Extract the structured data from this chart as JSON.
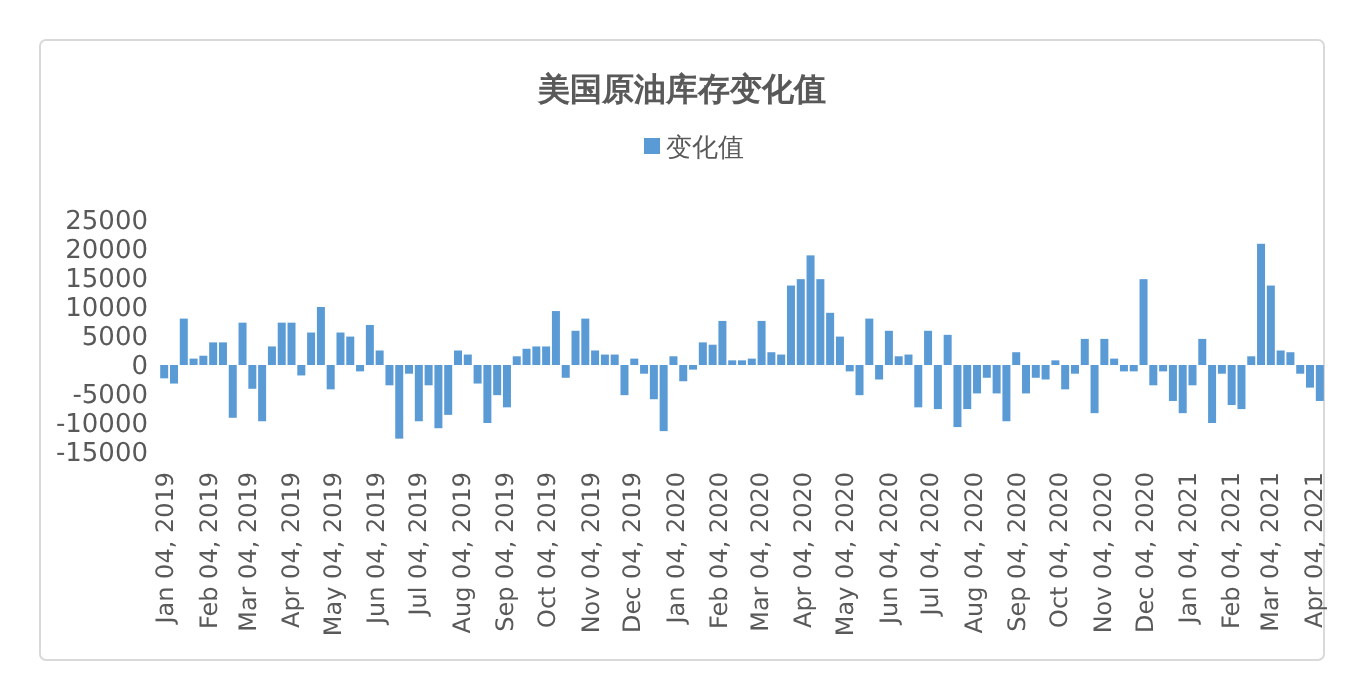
{
  "chart_data": {
    "type": "bar",
    "title": "美国原油库存变化值",
    "legend": "top",
    "grid": false,
    "series": [
      {
        "name": "变化值",
        "color": "#5b9bd5",
        "values": [
          -2300,
          -3200,
          8000,
          1100,
          1600,
          3900,
          3900,
          -9100,
          7300,
          -4100,
          -9700,
          3200,
          7300,
          7300,
          -1800,
          5600,
          10000,
          -4200,
          5600,
          4900,
          -1100,
          6900,
          2500,
          -3500,
          -12700,
          -1500,
          -9700,
          -3500,
          -10900,
          -8600,
          2500,
          1800,
          -3200,
          -10000,
          -5200,
          -7300,
          1500,
          2800,
          3200,
          3200,
          9300,
          -2200,
          5900,
          8000,
          2500,
          1800,
          1800,
          -5200,
          1100,
          -1500,
          -5900,
          -11400,
          1500,
          -2800,
          -800,
          3900,
          3500,
          7600,
          800,
          800,
          1100,
          7600,
          2200,
          1800,
          13700,
          14800,
          18900,
          14800,
          9000,
          4900,
          -1100,
          -5200,
          8000,
          -2500,
          5900,
          1500,
          1800,
          -7300,
          5900,
          -7600,
          5200,
          -10700,
          -7600,
          -4900,
          -2200,
          -4900,
          -9700,
          2200,
          -4900,
          -2200,
          -2500,
          800,
          -4200,
          -1500,
          4500,
          -8300,
          4500,
          1100,
          -1100,
          -1100,
          14800,
          -3500,
          -1100,
          -6200,
          -8300,
          -3500,
          4500,
          -10000,
          -1500,
          -6900,
          -7600,
          1500,
          20900,
          13700,
          2500,
          2200,
          -1500,
          -3900,
          -6200
        ]
      }
    ],
    "x": [
      "2019-01-04",
      "2019-01-11",
      "2019-01-18",
      "2019-01-25",
      "2019-02-01",
      "2019-02-08",
      "2019-02-15",
      "2019-02-22",
      "2019-03-01",
      "2019-03-08",
      "2019-03-15",
      "2019-03-22",
      "2019-03-29",
      "2019-04-05",
      "2019-04-12",
      "2019-04-19",
      "2019-04-26",
      "2019-05-03",
      "2019-05-10",
      "2019-05-17",
      "2019-05-24",
      "2019-05-31",
      "2019-06-07",
      "2019-06-14",
      "2019-06-21",
      "2019-06-28",
      "2019-07-05",
      "2019-07-12",
      "2019-07-19",
      "2019-07-26",
      "2019-08-02",
      "2019-08-09",
      "2019-08-16",
      "2019-08-23",
      "2019-08-30",
      "2019-09-06",
      "2019-09-13",
      "2019-09-20",
      "2019-09-27",
      "2019-10-04",
      "2019-10-11",
      "2019-10-18",
      "2019-10-25",
      "2019-11-01",
      "2019-11-08",
      "2019-11-15",
      "2019-11-22",
      "2019-11-29",
      "2019-12-06",
      "2019-12-13",
      "2019-12-20",
      "2019-12-27",
      "2020-01-03",
      "2020-01-10",
      "2020-01-17",
      "2020-01-24",
      "2020-01-31",
      "2020-02-07",
      "2020-02-14",
      "2020-02-21",
      "2020-02-28",
      "2020-03-06",
      "2020-03-13",
      "2020-03-20",
      "2020-03-27",
      "2020-04-03",
      "2020-04-10",
      "2020-04-17",
      "2020-04-24",
      "2020-05-01",
      "2020-05-08",
      "2020-05-15",
      "2020-05-22",
      "2020-05-29",
      "2020-06-05",
      "2020-06-12",
      "2020-06-19",
      "2020-06-26",
      "2020-07-03",
      "2020-07-10",
      "2020-07-17",
      "2020-07-24",
      "2020-07-31",
      "2020-08-07",
      "2020-08-14",
      "2020-08-21",
      "2020-08-28",
      "2020-09-04",
      "2020-09-11",
      "2020-09-18",
      "2020-09-25",
      "2020-10-02",
      "2020-10-09",
      "2020-10-16",
      "2020-10-23",
      "2020-10-30",
      "2020-11-06",
      "2020-11-13",
      "2020-11-20",
      "2020-11-27",
      "2020-12-04",
      "2020-12-11",
      "2020-12-18",
      "2020-12-25",
      "2021-01-01",
      "2021-01-08",
      "2021-01-15",
      "2021-01-22",
      "2021-01-29",
      "2021-02-05",
      "2021-02-12",
      "2021-02-19",
      "2021-02-26",
      "2021-03-05",
      "2021-03-12",
      "2021-03-19",
      "2021-03-26",
      "2021-04-02",
      "2021-04-09"
    ],
    "xlim": [
      "2019-01-01",
      "2021-04-12"
    ],
    "xticks": [
      {
        "value": "2019-01-04",
        "label": "Jan 04, 2019"
      },
      {
        "value": "2019-02-04",
        "label": "Feb 04, 2019"
      },
      {
        "value": "2019-03-04",
        "label": "Mar 04, 2019"
      },
      {
        "value": "2019-04-04",
        "label": "Apr 04, 2019"
      },
      {
        "value": "2019-05-04",
        "label": "May 04, 2019"
      },
      {
        "value": "2019-06-04",
        "label": "Jun 04, 2019"
      },
      {
        "value": "2019-07-04",
        "label": "Jul 04, 2019"
      },
      {
        "value": "2019-08-04",
        "label": "Aug 04, 2019"
      },
      {
        "value": "2019-09-04",
        "label": "Sep 04, 2019"
      },
      {
        "value": "2019-10-04",
        "label": "Oct 04, 2019"
      },
      {
        "value": "2019-11-04",
        "label": "Nov 04, 2019"
      },
      {
        "value": "2019-12-04",
        "label": "Dec 04, 2019"
      },
      {
        "value": "2020-01-04",
        "label": "Jan 04, 2020"
      },
      {
        "value": "2020-02-04",
        "label": "Feb 04, 2020"
      },
      {
        "value": "2020-03-04",
        "label": "Mar 04, 2020"
      },
      {
        "value": "2020-04-04",
        "label": "Apr 04, 2020"
      },
      {
        "value": "2020-05-04",
        "label": "May 04, 2020"
      },
      {
        "value": "2020-06-04",
        "label": "Jun 04, 2020"
      },
      {
        "value": "2020-07-04",
        "label": "Jul 04, 2020"
      },
      {
        "value": "2020-08-04",
        "label": "Aug 04, 2020"
      },
      {
        "value": "2020-09-04",
        "label": "Sep 04, 2020"
      },
      {
        "value": "2020-10-04",
        "label": "Oct 04, 2020"
      },
      {
        "value": "2020-11-04",
        "label": "Nov 04, 2020"
      },
      {
        "value": "2020-12-04",
        "label": "Dec 04, 2020"
      },
      {
        "value": "2021-01-04",
        "label": "Jan 04, 2021"
      },
      {
        "value": "2021-02-04",
        "label": "Feb 04, 2021"
      },
      {
        "value": "2021-03-04",
        "label": "Mar 04, 2021"
      },
      {
        "value": "2021-04-04",
        "label": "Apr 04, 2021"
      }
    ],
    "ylim": [
      -15000,
      25000
    ],
    "yticks": [
      -15000,
      -10000,
      -5000,
      0,
      5000,
      10000,
      15000,
      20000,
      25000
    ]
  }
}
